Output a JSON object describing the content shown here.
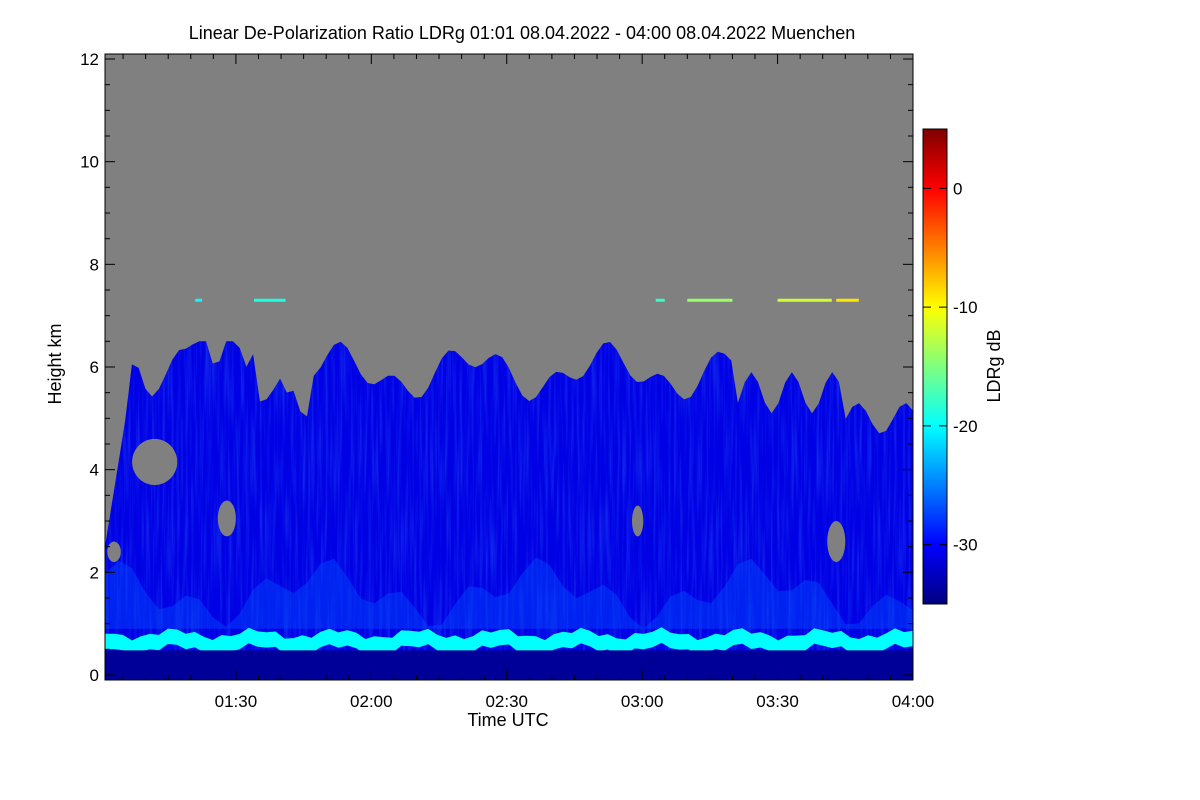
{
  "chart_data": {
    "type": "heatmap",
    "title": "Linear De-Polarization Ratio LDRg   01:01 08.04.2022 - 04:00 08.04.2022 Muenchen",
    "xlabel": "Time UTC",
    "ylabel": "Height km",
    "x_range": [
      "01:01",
      "04:00"
    ],
    "x_ticks": [
      "01:30",
      "02:00",
      "02:30",
      "03:00",
      "03:30",
      "04:00"
    ],
    "ylim": [
      0,
      12
    ],
    "y_ticks": [
      "0",
      "2",
      "4",
      "6",
      "8",
      "10",
      "12"
    ],
    "colorbar": {
      "label": "LDRg dB",
      "range": [
        -35,
        5
      ],
      "ticks": [
        "0",
        "-10",
        "-20",
        "-30"
      ],
      "colors": [
        "#00007f",
        "#0000ff",
        "#007fff",
        "#00ffff",
        "#7fff7f",
        "#ffff00",
        "#ff7f00",
        "#ff0000",
        "#7f0000"
      ]
    },
    "no_signal_color": "#808080",
    "features": [
      {
        "label": "aerosol boundary layer",
        "height_km": [
          0.5,
          0.8
        ],
        "ldr_db": -20
      },
      {
        "label": "depolarizing layer",
        "height_km": [
          0.0,
          6.5
        ],
        "ldr_db": -31
      },
      {
        "label": "thin high layer",
        "height_km": [
          7.25,
          7.35
        ],
        "ldr_db": -15
      }
    ]
  }
}
